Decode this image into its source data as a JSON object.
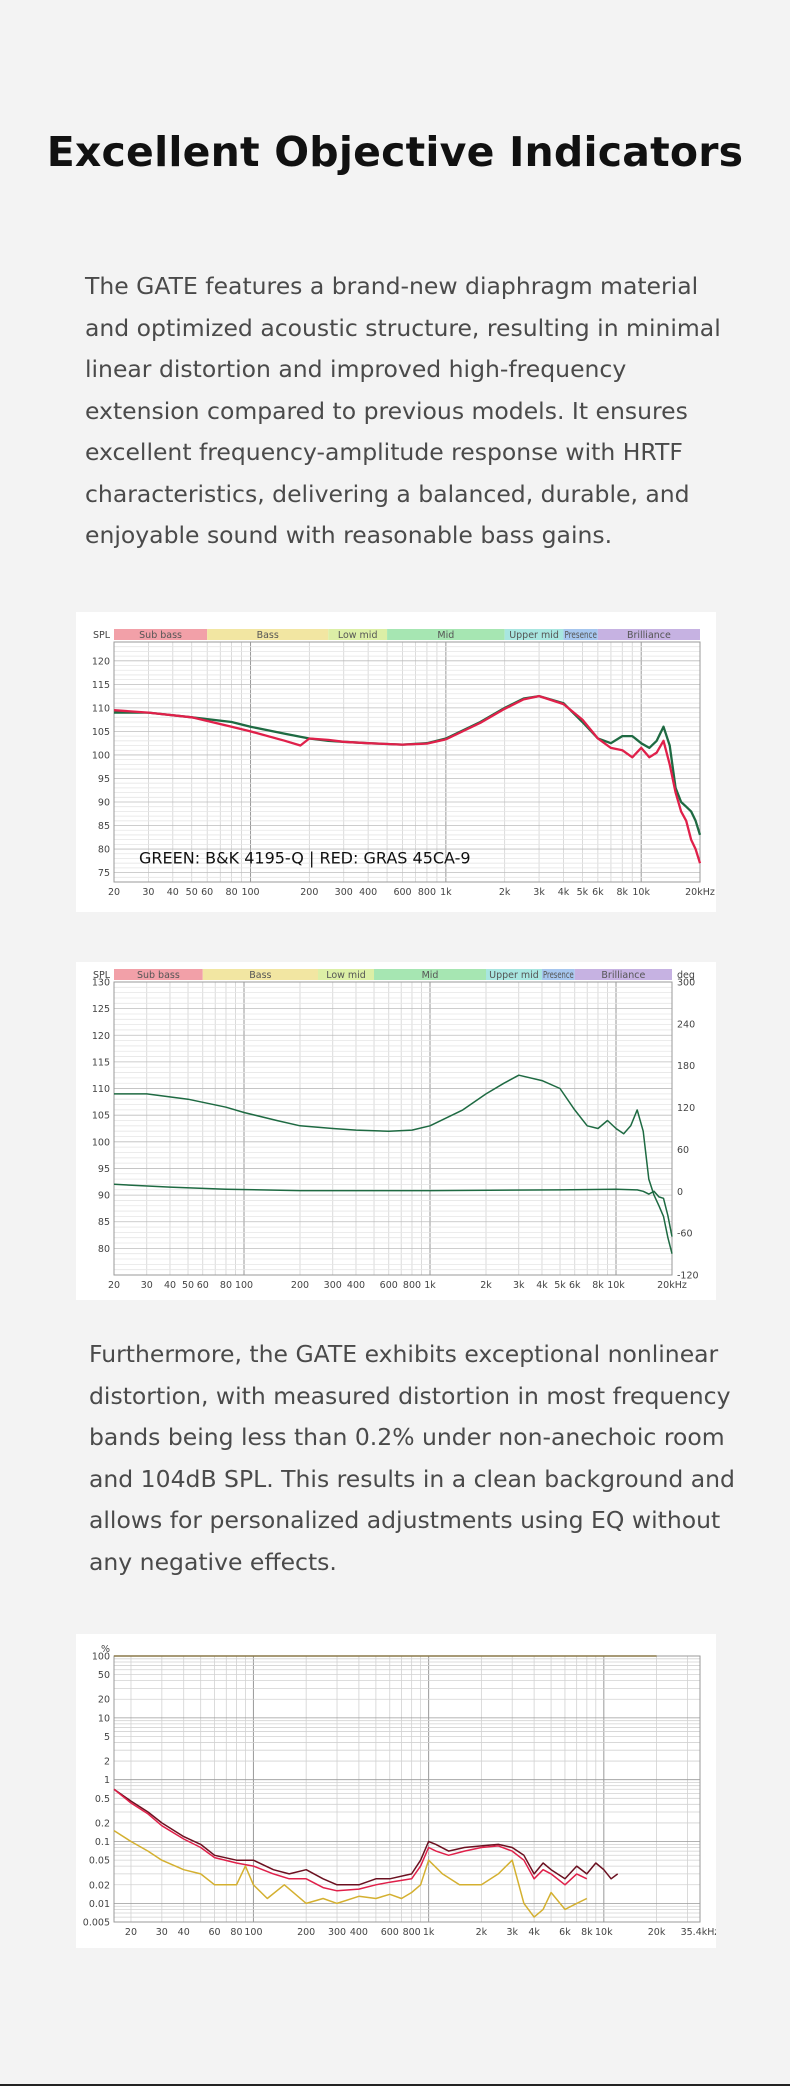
{
  "page": {
    "title": "Excellent Objective Indicators",
    "paragraph_1": "The GATE features a brand-new diaphragm material and optimized acoustic structure, resulting in minimal linear distortion and improved high-frequency extension compared to previous models. It ensures excellent frequency-amplitude response with HRTF characteristics, delivering a balanced, durable, and enjoyable sound with reasonable bass gains.",
    "paragraph_2": "Furthermore, the GATE exhibits exceptional nonlinear distortion, with measured distortion in most frequency bands being less than 0.2% under non-anechoic room and 104dB SPL. This results in a clean background and allows for personalized adjustments using EQ without any negative effects."
  },
  "colors": {
    "green": "#1e6a42",
    "red": "#e0204a",
    "dark_red": "#6b1020",
    "olive": "#8a7848",
    "yellow": "#d4b030",
    "grid": "#c8c8c8"
  },
  "bands": [
    {
      "label": "Sub bass",
      "color": "#f2a0a8"
    },
    {
      "label": "Bass",
      "color": "#f2e6a2"
    },
    {
      "label": "Low mid",
      "color": "#dcefa6"
    },
    {
      "label": "Mid",
      "color": "#a6e6b2"
    },
    {
      "label": "Upper mid",
      "color": "#a8e6e0"
    },
    {
      "label": "Presence",
      "color": "#a6c6ee"
    },
    {
      "label": "Brilliance",
      "color": "#c6b2e2"
    }
  ],
  "chart_data": [
    {
      "type": "line",
      "ylabel": "SPL",
      "ylim": [
        73,
        124
      ],
      "yticks": [
        75,
        80,
        85,
        90,
        95,
        100,
        105,
        110,
        115,
        120
      ],
      "xlim": [
        20,
        20000
      ],
      "xscale": "log",
      "xticks": [
        "20",
        "30",
        "40",
        "50",
        "60",
        "80",
        "100",
        "200",
        "300",
        "400",
        "600",
        "800",
        "1k",
        "2k",
        "3k",
        "4k",
        "5k",
        "6k",
        "8k",
        "10k",
        "20kHz"
      ],
      "annotation": "GREEN: B&K 4195-Q | RED: GRAS 45CA-9",
      "series": [
        {
          "color": "green",
          "x": [
            20,
            30,
            50,
            80,
            100,
            150,
            200,
            250,
            300,
            400,
            600,
            800,
            1000,
            1500,
            2000,
            2500,
            3000,
            4000,
            5000,
            6000,
            7000,
            8000,
            9000,
            10000,
            11000,
            12000,
            13000,
            14000,
            15000,
            16000,
            17000,
            18000,
            19000,
            20000
          ],
          "y": [
            109,
            109,
            108,
            107,
            106,
            104.5,
            103.5,
            103,
            102.8,
            102.5,
            102.2,
            102.5,
            103.5,
            107,
            110,
            112,
            112.5,
            111,
            107,
            103.5,
            102.5,
            104,
            104,
            102.5,
            101.5,
            103,
            106,
            102,
            93,
            90,
            89,
            88,
            86,
            83
          ]
        },
        {
          "color": "red",
          "x": [
            20,
            30,
            50,
            80,
            100,
            150,
            180,
            200,
            250,
            300,
            400,
            600,
            800,
            1000,
            1500,
            2000,
            2500,
            3000,
            4000,
            5000,
            6000,
            7000,
            8000,
            9000,
            10000,
            11000,
            12000,
            13000,
            14000,
            15000,
            16000,
            17000,
            18000,
            19000,
            20000
          ],
          "y": [
            109.5,
            109,
            108,
            106,
            105,
            103,
            102,
            103.5,
            103.2,
            102.8,
            102.5,
            102.2,
            102.4,
            103.3,
            106.8,
            109.8,
            111.8,
            112.5,
            110.8,
            107.5,
            103.5,
            101.5,
            101,
            99.5,
            101.5,
            99.5,
            100.5,
            103,
            98,
            92,
            88,
            86,
            82,
            80,
            77
          ]
        }
      ]
    },
    {
      "type": "line",
      "ylabel": "SPL",
      "y2label": "deg",
      "ylim": [
        75,
        130
      ],
      "yticks": [
        80,
        85,
        90,
        95,
        100,
        105,
        110,
        115,
        120,
        125,
        130
      ],
      "y2lim": [
        -120,
        300
      ],
      "y2ticks": [
        -120,
        -60,
        0,
        60,
        120,
        180,
        240,
        300
      ],
      "xlim": [
        20,
        20000
      ],
      "xscale": "log",
      "xticks": [
        "20",
        "30",
        "40",
        "50",
        "60",
        "80",
        "100",
        "200",
        "300",
        "400",
        "600",
        "800",
        "1k",
        "2k",
        "3k",
        "4k",
        "5k",
        "6k",
        "8k",
        "10k",
        "20kHz"
      ],
      "series": [
        {
          "color": "green",
          "axis": "left",
          "x": [
            20,
            30,
            50,
            80,
            100,
            150,
            200,
            300,
            400,
            600,
            800,
            1000,
            1500,
            2000,
            2500,
            3000,
            4000,
            5000,
            6000,
            7000,
            8000,
            9000,
            10000,
            11000,
            12000,
            13000,
            14000,
            15000,
            16000,
            17000,
            18000,
            19000,
            20000
          ],
          "y": [
            109,
            109,
            108,
            106.5,
            105.5,
            104,
            103,
            102.5,
            102.2,
            102,
            102.2,
            103,
            106,
            109,
            111,
            112.5,
            111.5,
            110,
            106,
            103,
            102.5,
            104,
            102.5,
            101.5,
            103,
            106,
            102,
            93,
            90,
            88,
            86,
            82,
            79
          ]
        },
        {
          "color": "green",
          "axis": "right",
          "x": [
            20,
            40,
            80,
            200,
            1000,
            5000,
            10000,
            13000,
            14000,
            15000,
            16000,
            17000,
            18000,
            19000,
            20000
          ],
          "y": [
            10,
            6,
            3,
            1,
            1,
            2,
            3,
            2,
            0,
            -4,
            0,
            -8,
            -10,
            -35,
            -65
          ]
        }
      ]
    },
    {
      "type": "line",
      "ylabel": "%",
      "yscale": "log",
      "ylim": [
        0.005,
        100
      ],
      "yticks": [
        "100",
        "50",
        "20",
        "10",
        "5",
        "2",
        "1",
        "0.5",
        "0.2",
        "0.1",
        "0.05",
        "0.02",
        "0.01",
        "0.005"
      ],
      "xlim": [
        16,
        35400
      ],
      "xscale": "log",
      "xticks": [
        "20",
        "30",
        "40",
        "60",
        "80",
        "100",
        "200",
        "300",
        "400",
        "600",
        "800",
        "1k",
        "2k",
        "3k",
        "4k",
        "6k",
        "8k",
        "10k",
        "20k",
        "35.4kHz"
      ],
      "series": [
        {
          "color": "olive",
          "x": [
            16,
            100,
            200,
            1000,
            5000,
            10000,
            20000
          ],
          "y": [
            100,
            100,
            100,
            100,
            100,
            100,
            100
          ]
        },
        {
          "color": "dark_red",
          "x": [
            16,
            20,
            25,
            30,
            40,
            50,
            60,
            80,
            100,
            130,
            160,
            200,
            250,
            300,
            400,
            500,
            600,
            800,
            900,
            1000,
            1100,
            1300,
            1600,
            2000,
            2500,
            3000,
            3500,
            4000,
            4500,
            5000,
            6000,
            7000,
            8000,
            9000,
            10000,
            11000,
            12000
          ],
          "y": [
            0.7,
            0.45,
            0.3,
            0.2,
            0.12,
            0.09,
            0.06,
            0.05,
            0.05,
            0.035,
            0.03,
            0.035,
            0.025,
            0.02,
            0.02,
            0.025,
            0.025,
            0.03,
            0.05,
            0.1,
            0.09,
            0.07,
            0.08,
            0.085,
            0.09,
            0.08,
            0.06,
            0.03,
            0.045,
            0.035,
            0.025,
            0.04,
            0.03,
            0.045,
            0.035,
            0.025,
            0.03
          ]
        },
        {
          "color": "red",
          "x": [
            16,
            20,
            25,
            30,
            40,
            50,
            60,
            80,
            100,
            130,
            160,
            200,
            250,
            300,
            400,
            500,
            600,
            800,
            900,
            1000,
            1100,
            1300,
            1600,
            2000,
            2500,
            3000,
            3500,
            4000,
            4500,
            5000,
            6000,
            7000,
            8000
          ],
          "y": [
            0.7,
            0.42,
            0.28,
            0.18,
            0.11,
            0.08,
            0.055,
            0.045,
            0.04,
            0.03,
            0.025,
            0.025,
            0.018,
            0.016,
            0.017,
            0.02,
            0.022,
            0.025,
            0.04,
            0.08,
            0.07,
            0.06,
            0.07,
            0.08,
            0.085,
            0.07,
            0.05,
            0.025,
            0.035,
            0.03,
            0.02,
            0.03,
            0.025
          ]
        },
        {
          "color": "yellow",
          "x": [
            16,
            20,
            25,
            30,
            40,
            50,
            60,
            80,
            90,
            100,
            120,
            150,
            200,
            250,
            300,
            400,
            500,
            600,
            700,
            800,
            900,
            1000,
            1200,
            1500,
            2000,
            2500,
            3000,
            3500,
            4000,
            4500,
            5000,
            6000,
            7000,
            8000
          ],
          "y": [
            0.15,
            0.1,
            0.07,
            0.05,
            0.035,
            0.03,
            0.02,
            0.02,
            0.04,
            0.02,
            0.012,
            0.02,
            0.01,
            0.012,
            0.01,
            0.013,
            0.012,
            0.014,
            0.012,
            0.015,
            0.02,
            0.05,
            0.03,
            0.02,
            0.02,
            0.03,
            0.05,
            0.01,
            0.006,
            0.008,
            0.015,
            0.008,
            0.01,
            0.012
          ]
        }
      ]
    }
  ]
}
